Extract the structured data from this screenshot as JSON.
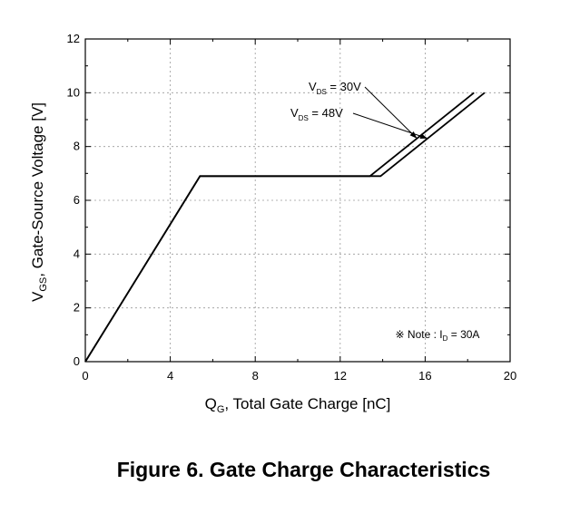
{
  "caption": "Figure 6. Gate Charge Characteristics",
  "chart_data": {
    "type": "line",
    "xlabel": {
      "main": "Q",
      "sub": "G",
      "rest": ", Total Gate Charge [nC]"
    },
    "ylabel": {
      "main": "V",
      "sub": "GS",
      "rest": ", Gate-Source Voltage [V]"
    },
    "xlim": [
      0,
      20
    ],
    "ylim": [
      0,
      12
    ],
    "xticks": [
      0,
      4,
      8,
      12,
      16,
      20
    ],
    "yticks": [
      0,
      2,
      4,
      6,
      8,
      10,
      12
    ],
    "grid": true,
    "series": [
      {
        "name": "VDS = 30V",
        "label": {
          "main": "V",
          "sub": "DS",
          "rest": " = 30V"
        },
        "x": [
          0,
          5.4,
          13.4,
          18.3
        ],
        "y": [
          0,
          6.9,
          6.9,
          10.0
        ]
      },
      {
        "name": "VDS = 48V",
        "label": {
          "main": "V",
          "sub": "DS",
          "rest": " = 48V"
        },
        "x": [
          0,
          5.4,
          13.9,
          18.8
        ],
        "y": [
          0,
          6.9,
          6.9,
          10.0
        ]
      }
    ],
    "note": {
      "prefix": "※ Note : I",
      "sub": "D",
      "rest": " = 30A"
    }
  }
}
